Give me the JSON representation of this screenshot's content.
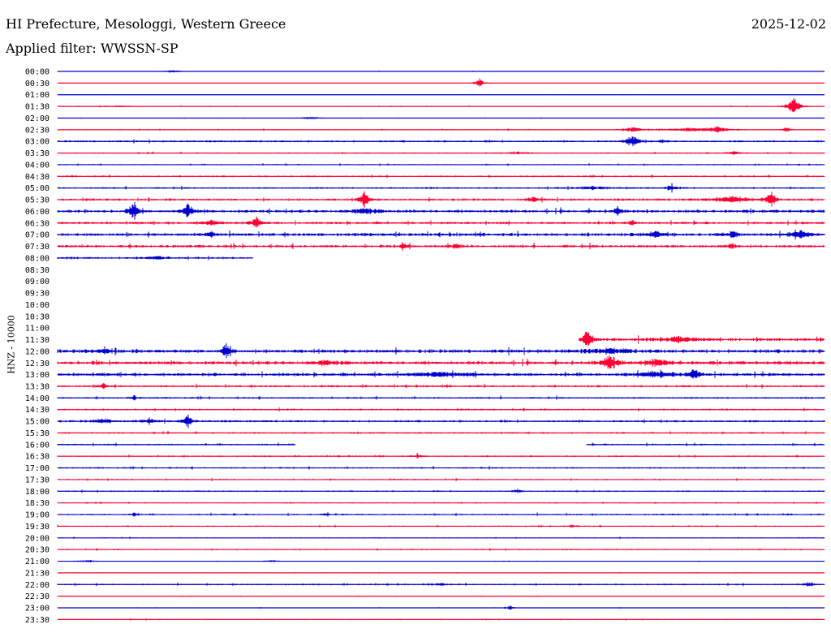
{
  "header": {
    "title": "HI Prefecture, Mesologgi, Western Greece",
    "date": "2025-12-02",
    "filter": "Applied filter: WWSSN-SP"
  },
  "chart_data": {
    "type": "line",
    "ylabel": "HNZ - 10000",
    "colors": [
      "#0000cc",
      "#ff0033"
    ],
    "rows": [
      {
        "label": "00:00",
        "color": "#0000cc",
        "start": 0.0,
        "end": 1.0,
        "noise": 0.3,
        "events": [
          [
            0.15,
            1.5,
            0.01
          ]
        ]
      },
      {
        "label": "00:30",
        "color": "#ff0033",
        "start": 0.0,
        "end": 1.0,
        "noise": 0.25,
        "events": [
          [
            0.55,
            7,
            0.004
          ]
        ]
      },
      {
        "label": "01:00",
        "color": "#0000cc",
        "start": 0.0,
        "end": 1.0,
        "noise": 0.25,
        "events": []
      },
      {
        "label": "01:30",
        "color": "#ff0033",
        "start": 0.0,
        "end": 1.0,
        "noise": 0.45,
        "events": [
          [
            0.96,
            12,
            0.006
          ],
          [
            0.08,
            1,
            0.02
          ]
        ]
      },
      {
        "label": "02:00",
        "color": "#0000cc",
        "start": 0.0,
        "end": 1.0,
        "noise": 0.3,
        "events": [
          [
            0.33,
            2,
            0.01
          ]
        ]
      },
      {
        "label": "02:30",
        "color": "#ff0033",
        "start": 0.0,
        "end": 1.0,
        "noise": 0.6,
        "events": [
          [
            0.75,
            3,
            0.01
          ],
          [
            0.86,
            4,
            0.01
          ],
          [
            0.82,
            2,
            0.03
          ],
          [
            0.95,
            3,
            0.004
          ]
        ]
      },
      {
        "label": "03:00",
        "color": "#0000cc",
        "start": 0.0,
        "end": 1.0,
        "noise": 1.1,
        "events": [
          [
            0.75,
            8,
            0.006
          ],
          [
            0.79,
            2,
            0.004
          ]
        ]
      },
      {
        "label": "03:30",
        "color": "#ff0033",
        "start": 0.0,
        "end": 1.0,
        "noise": 0.7,
        "events": [
          [
            0.88,
            2.5,
            0.006
          ],
          [
            0.6,
            1.5,
            0.01
          ]
        ]
      },
      {
        "label": "04:00",
        "color": "#0000cc",
        "start": 0.0,
        "end": 1.0,
        "noise": 0.7,
        "events": []
      },
      {
        "label": "04:30",
        "color": "#ff0033",
        "start": 0.0,
        "end": 1.0,
        "noise": 0.9,
        "events": []
      },
      {
        "label": "05:00",
        "color": "#0000cc",
        "start": 0.0,
        "end": 1.0,
        "noise": 1.0,
        "events": [
          [
            0.8,
            4,
            0.005
          ],
          [
            0.7,
            2,
            0.02
          ]
        ]
      },
      {
        "label": "05:30",
        "color": "#ff0033",
        "start": 0.0,
        "end": 1.0,
        "noise": 1.3,
        "events": [
          [
            0.4,
            13,
            0.004
          ],
          [
            0.93,
            13,
            0.004
          ],
          [
            0.88,
            4,
            0.02
          ],
          [
            0.62,
            3,
            0.006
          ]
        ]
      },
      {
        "label": "06:00",
        "color": "#0000cc",
        "start": 0.0,
        "end": 1.0,
        "noise": 1.8,
        "events": [
          [
            0.1,
            12,
            0.004
          ],
          [
            0.17,
            12,
            0.004
          ],
          [
            0.73,
            7,
            0.003
          ],
          [
            0.4,
            4,
            0.01
          ]
        ]
      },
      {
        "label": "06:30",
        "color": "#ff0033",
        "start": 0.0,
        "end": 1.0,
        "noise": 1.4,
        "events": [
          [
            0.26,
            10,
            0.004
          ],
          [
            0.2,
            3,
            0.01
          ],
          [
            0.75,
            3,
            0.005
          ]
        ]
      },
      {
        "label": "07:00",
        "color": "#0000cc",
        "start": 0.0,
        "end": 1.0,
        "noise": 1.8,
        "events": [
          [
            0.2,
            5,
            0.004
          ],
          [
            0.78,
            4,
            0.01
          ],
          [
            0.88,
            5,
            0.005
          ],
          [
            0.97,
            5,
            0.01
          ]
        ]
      },
      {
        "label": "07:30",
        "color": "#ff0033",
        "start": 0.0,
        "end": 1.0,
        "noise": 1.6,
        "events": [
          [
            0.45,
            5,
            0.003
          ],
          [
            0.52,
            3,
            0.005
          ],
          [
            0.88,
            4,
            0.003
          ]
        ]
      },
      {
        "label": "08:00",
        "color": "#0000cc",
        "start": 0.0,
        "end": 0.255,
        "noise": 1.2,
        "events": [
          [
            0.13,
            2.5,
            0.01
          ]
        ]
      },
      {
        "label": "08:30",
        "color": "#ff0033",
        "start": 0.0,
        "end": 0.0,
        "noise": 0,
        "events": []
      },
      {
        "label": "09:00",
        "color": "#0000cc",
        "start": 0.0,
        "end": 0.0,
        "noise": 0,
        "events": []
      },
      {
        "label": "09:30",
        "color": "#ff0033",
        "start": 0.0,
        "end": 0.0,
        "noise": 0,
        "events": []
      },
      {
        "label": "10:00",
        "color": "#0000cc",
        "start": 0.0,
        "end": 0.0,
        "noise": 0,
        "events": []
      },
      {
        "label": "10:30",
        "color": "#ff0033",
        "start": 0.0,
        "end": 0.0,
        "noise": 0,
        "events": []
      },
      {
        "label": "11:00",
        "color": "#0000cc",
        "start": 0.0,
        "end": 0.0,
        "noise": 0,
        "events": []
      },
      {
        "label": "11:30",
        "color": "#ff0033",
        "start": 0.68,
        "end": 1.0,
        "noise": 1.8,
        "events": [
          [
            0.69,
            14,
            0.004
          ],
          [
            0.81,
            4,
            0.015
          ]
        ]
      },
      {
        "label": "12:00",
        "color": "#0000cc",
        "start": 0.0,
        "end": 1.0,
        "noise": 2.0,
        "events": [
          [
            0.22,
            11,
            0.004
          ],
          [
            0.06,
            3,
            0.01
          ],
          [
            0.72,
            3,
            0.02
          ]
        ]
      },
      {
        "label": "12:30",
        "color": "#ff0033",
        "start": 0.0,
        "end": 1.0,
        "noise": 2.0,
        "events": [
          [
            0.72,
            12,
            0.006
          ],
          [
            0.35,
            3,
            0.01
          ],
          [
            0.78,
            4,
            0.015
          ]
        ]
      },
      {
        "label": "13:00",
        "color": "#0000cc",
        "start": 0.0,
        "end": 1.0,
        "noise": 1.8,
        "events": [
          [
            0.83,
            9,
            0.005
          ],
          [
            0.78,
            3,
            0.02
          ],
          [
            0.5,
            2.5,
            0.03
          ]
        ]
      },
      {
        "label": "13:30",
        "color": "#ff0033",
        "start": 0.0,
        "end": 1.0,
        "noise": 1.2,
        "events": [
          [
            0.06,
            4,
            0.004
          ]
        ]
      },
      {
        "label": "14:00",
        "color": "#0000cc",
        "start": 0.0,
        "end": 1.0,
        "noise": 1.0,
        "events": [
          [
            0.1,
            3,
            0.003
          ]
        ]
      },
      {
        "label": "14:30",
        "color": "#ff0033",
        "start": 0.0,
        "end": 1.0,
        "noise": 1.0,
        "events": []
      },
      {
        "label": "15:00",
        "color": "#0000cc",
        "start": 0.0,
        "end": 1.0,
        "noise": 1.2,
        "events": [
          [
            0.17,
            9,
            0.004
          ],
          [
            0.06,
            3,
            0.01
          ],
          [
            0.12,
            2,
            0.01
          ]
        ]
      },
      {
        "label": "15:30",
        "color": "#ff0033",
        "start": 0.0,
        "end": 1.0,
        "noise": 0.9,
        "events": []
      },
      {
        "label": "16:00",
        "color": "#0000cc",
        "start": 0.0,
        "end": 0.31,
        "start2": 0.69,
        "noise": 1.0,
        "events": []
      },
      {
        "label": "16:30",
        "color": "#ff0033",
        "start": 0.0,
        "end": 1.0,
        "noise": 0.8,
        "events": [
          [
            0.47,
            2.5,
            0.004
          ]
        ]
      },
      {
        "label": "17:00",
        "color": "#0000cc",
        "start": 0.0,
        "end": 1.0,
        "noise": 0.9,
        "events": []
      },
      {
        "label": "17:30",
        "color": "#ff0033",
        "start": 0.0,
        "end": 1.0,
        "noise": 0.8,
        "events": []
      },
      {
        "label": "18:00",
        "color": "#0000cc",
        "start": 0.0,
        "end": 1.0,
        "noise": 0.8,
        "events": [
          [
            0.6,
            2.5,
            0.004
          ]
        ]
      },
      {
        "label": "18:30",
        "color": "#ff0033",
        "start": 0.0,
        "end": 1.0,
        "noise": 0.6,
        "events": []
      },
      {
        "label": "19:00",
        "color": "#0000cc",
        "start": 0.0,
        "end": 1.0,
        "noise": 0.9,
        "events": [
          [
            0.1,
            3,
            0.003
          ],
          [
            0.35,
            2,
            0.003
          ]
        ]
      },
      {
        "label": "19:30",
        "color": "#ff0033",
        "start": 0.0,
        "end": 1.0,
        "noise": 0.7,
        "events": [
          [
            0.67,
            2.5,
            0.004
          ]
        ]
      },
      {
        "label": "20:00",
        "color": "#0000cc",
        "start": 0.0,
        "end": 1.0,
        "noise": 0.5,
        "events": []
      },
      {
        "label": "20:30",
        "color": "#ff0033",
        "start": 0.0,
        "end": 1.0,
        "noise": 0.7,
        "events": []
      },
      {
        "label": "21:00",
        "color": "#0000cc",
        "start": 0.0,
        "end": 1.0,
        "noise": 0.35,
        "events": [
          [
            0.04,
            1.5,
            0.01
          ],
          [
            0.28,
            1.5,
            0.01
          ]
        ]
      },
      {
        "label": "21:30",
        "color": "#ff0033",
        "start": 0.0,
        "end": 1.0,
        "noise": 0.35,
        "events": []
      },
      {
        "label": "22:00",
        "color": "#0000cc",
        "start": 0.0,
        "end": 1.0,
        "noise": 0.9,
        "events": [
          [
            0.5,
            3,
            0.004
          ],
          [
            0.98,
            3,
            0.005
          ]
        ]
      },
      {
        "label": "22:30",
        "color": "#ff0033",
        "start": 0.0,
        "end": 1.0,
        "noise": 0.35,
        "events": []
      },
      {
        "label": "23:00",
        "color": "#0000cc",
        "start": 0.0,
        "end": 1.0,
        "noise": 0.35,
        "events": [
          [
            0.59,
            3,
            0.004
          ]
        ]
      },
      {
        "label": "23:30",
        "color": "#ff0033",
        "start": 0.0,
        "end": 1.0,
        "noise": 0.6,
        "events": []
      }
    ]
  }
}
